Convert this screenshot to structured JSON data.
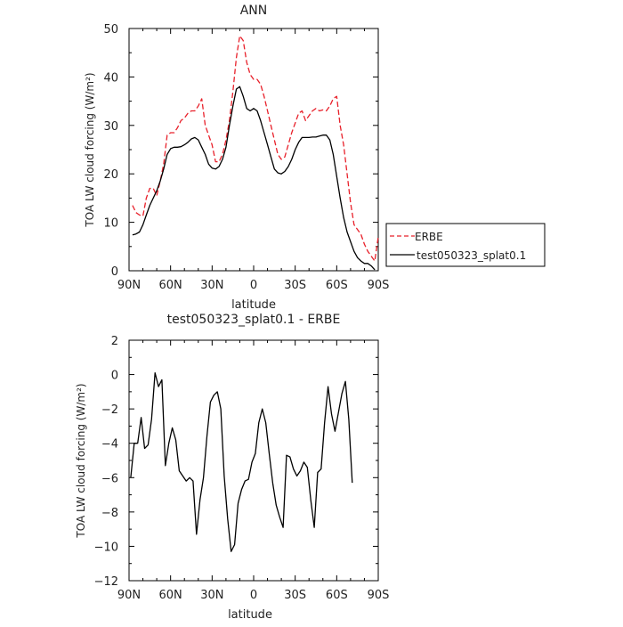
{
  "chart_data": [
    {
      "type": "line",
      "title": "ANN",
      "xlabel": "latitude",
      "ylabel": "TOA LW cloud forcing (W/m²)",
      "x_ticks": [
        90,
        60,
        30,
        0,
        -30,
        -60,
        -90
      ],
      "x_tick_labels": [
        "90N",
        "60N",
        "30N",
        "0",
        "30S",
        "60S",
        "90S"
      ],
      "xlim": [
        90,
        -90
      ],
      "ylim": [
        0,
        50
      ],
      "y_ticks": [
        0,
        10,
        20,
        30,
        40,
        50
      ],
      "y_tick_labels": [
        "0",
        "10",
        "20",
        "30",
        "40",
        "50"
      ],
      "legend_position": "outside-right",
      "series": [
        {
          "name": "ERBE",
          "color": "#e8202a",
          "dash": "dashed",
          "points": [
            [
              87.5,
              13.5
            ],
            [
              85,
              12
            ],
            [
              82.5,
              11.5
            ],
            [
              80,
              11.3
            ],
            [
              77.5,
              15
            ],
            [
              75,
              17
            ],
            [
              72.5,
              17
            ],
            [
              70,
              15.5
            ],
            [
              67.5,
              18.5
            ],
            [
              65,
              22
            ],
            [
              62.5,
              28
            ],
            [
              60,
              28.5
            ],
            [
              57.5,
              28.5
            ],
            [
              55,
              29.5
            ],
            [
              52.5,
              31
            ],
            [
              50,
              31.5
            ],
            [
              47.5,
              32.5
            ],
            [
              45,
              33
            ],
            [
              42.5,
              33
            ],
            [
              40,
              34
            ],
            [
              37.5,
              35.5
            ],
            [
              35,
              30
            ],
            [
              32.5,
              28
            ],
            [
              30,
              26
            ],
            [
              27.5,
              22.5
            ],
            [
              25,
              22.5
            ],
            [
              22.5,
              24
            ],
            [
              20,
              27
            ],
            [
              17.5,
              31
            ],
            [
              15,
              37
            ],
            [
              12.5,
              44
            ],
            [
              10,
              48.5
            ],
            [
              7.5,
              47.5
            ],
            [
              5,
              43
            ],
            [
              2.5,
              40.5
            ],
            [
              0,
              39.5
            ],
            [
              -2.5,
              39.5
            ],
            [
              -5,
              38.5
            ],
            [
              -7.5,
              36
            ],
            [
              -10,
              33
            ],
            [
              -12.5,
              30
            ],
            [
              -15,
              27
            ],
            [
              -17.5,
              24
            ],
            [
              -20,
              23
            ],
            [
              -22.5,
              23.5
            ],
            [
              -25,
              26
            ],
            [
              -27.5,
              28.5
            ],
            [
              -30,
              30.5
            ],
            [
              -32.5,
              32.5
            ],
            [
              -35,
              33
            ],
            [
              -37.5,
              31
            ],
            [
              -40,
              32
            ],
            [
              -42.5,
              33
            ],
            [
              -45,
              33.5
            ],
            [
              -47.5,
              33
            ],
            [
              -50,
              33.2
            ],
            [
              -52.5,
              33
            ],
            [
              -55,
              34
            ],
            [
              -57.5,
              35.5
            ],
            [
              -60,
              36
            ],
            [
              -62.5,
              30
            ],
            [
              -65,
              26
            ],
            [
              -67.5,
              20
            ],
            [
              -70,
              14
            ],
            [
              -72.5,
              9.5
            ],
            [
              -75,
              8.5
            ],
            [
              -77.5,
              7.5
            ],
            [
              -80,
              5.5
            ],
            [
              -82.5,
              4
            ],
            [
              -85,
              3
            ],
            [
              -87.5,
              2
            ],
            [
              -90,
              7
            ]
          ]
        },
        {
          "name": "test050323_splat0.1",
          "color": "#000000",
          "dash": "solid",
          "points": [
            [
              87.5,
              7.4
            ],
            [
              85,
              7.6
            ],
            [
              82.5,
              8
            ],
            [
              80,
              9.5
            ],
            [
              77.5,
              11.5
            ],
            [
              75,
              13.5
            ],
            [
              72.5,
              15
            ],
            [
              70,
              16.5
            ],
            [
              67.5,
              18.5
            ],
            [
              65,
              21
            ],
            [
              62.5,
              24
            ],
            [
              60,
              25.2
            ],
            [
              57.5,
              25.5
            ],
            [
              55,
              25.5
            ],
            [
              52.5,
              25.6
            ],
            [
              50,
              26
            ],
            [
              47.5,
              26.5
            ],
            [
              45,
              27.2
            ],
            [
              42.5,
              27.5
            ],
            [
              40,
              27
            ],
            [
              37.5,
              25.5
            ],
            [
              35,
              24
            ],
            [
              32.5,
              22
            ],
            [
              30,
              21.2
            ],
            [
              27.5,
              21
            ],
            [
              25,
              21.5
            ],
            [
              22.5,
              23
            ],
            [
              20,
              25.5
            ],
            [
              17.5,
              30
            ],
            [
              15,
              34
            ],
            [
              12.5,
              37.5
            ],
            [
              10,
              38
            ],
            [
              7.5,
              36
            ],
            [
              5,
              33.5
            ],
            [
              2.5,
              33
            ],
            [
              0,
              33.5
            ],
            [
              -2.5,
              33
            ],
            [
              -5,
              31
            ],
            [
              -7.5,
              28.5
            ],
            [
              -10,
              26
            ],
            [
              -12.5,
              23.5
            ],
            [
              -15,
              21
            ],
            [
              -17.5,
              20.2
            ],
            [
              -20,
              20
            ],
            [
              -22.5,
              20.5
            ],
            [
              -25,
              21.5
            ],
            [
              -27.5,
              23
            ],
            [
              -30,
              25
            ],
            [
              -32.5,
              26.5
            ],
            [
              -35,
              27.5
            ],
            [
              -37.5,
              27.5
            ],
            [
              -40,
              27.5
            ],
            [
              -42.5,
              27.6
            ],
            [
              -45,
              27.6
            ],
            [
              -47.5,
              27.8
            ],
            [
              -50,
              28
            ],
            [
              -52.5,
              28
            ],
            [
              -55,
              27
            ],
            [
              -57.5,
              24
            ],
            [
              -60,
              19.5
            ],
            [
              -62.5,
              15
            ],
            [
              -65,
              11
            ],
            [
              -67.5,
              8
            ],
            [
              -70,
              6
            ],
            [
              -72.5,
              4
            ],
            [
              -75,
              2.7
            ],
            [
              -77.5,
              2
            ],
            [
              -80,
              1.5
            ],
            [
              -82.5,
              1.5
            ],
            [
              -85,
              1
            ],
            [
              -87.5,
              0.2
            ]
          ]
        }
      ]
    },
    {
      "type": "line",
      "title": "test050323_splat0.1 - ERBE",
      "xlabel": "latitude",
      "ylabel": "TOA LW cloud forcing (W/m²)",
      "x_ticks": [
        90,
        60,
        30,
        0,
        -30,
        -60,
        -90
      ],
      "x_tick_labels": [
        "90N",
        "60N",
        "30N",
        "0",
        "30S",
        "60S",
        "90S"
      ],
      "xlim": [
        90,
        -90
      ],
      "ylim": [
        -12,
        2
      ],
      "y_ticks": [
        -12,
        -10,
        -8,
        -6,
        -4,
        -2,
        0,
        2
      ],
      "y_tick_labels": [
        "−12",
        "−10",
        "−8",
        "−6",
        "−4",
        "−2",
        "0",
        "2"
      ],
      "series": [
        {
          "color": "#000000",
          "dash": "solid",
          "points": [
            [
              88.75,
              -6
            ],
            [
              86.25,
              -4
            ],
            [
              83.75,
              -4
            ],
            [
              81.25,
              -2.5
            ],
            [
              78.75,
              -4.3
            ],
            [
              76.25,
              -4.1
            ],
            [
              73.75,
              -2.6
            ],
            [
              71.25,
              0.1
            ],
            [
              68.75,
              -0.7
            ],
            [
              66.25,
              -0.3
            ],
            [
              63.75,
              -5.3
            ],
            [
              61.25,
              -4
            ],
            [
              58.75,
              -3.1
            ],
            [
              56.25,
              -3.8
            ],
            [
              53.75,
              -5.6
            ],
            [
              51.25,
              -5.9
            ],
            [
              48.75,
              -6.2
            ],
            [
              46.25,
              -6
            ],
            [
              43.75,
              -6.2
            ],
            [
              41.25,
              -9.3
            ],
            [
              38.75,
              -7.3
            ],
            [
              36.25,
              -6
            ],
            [
              33.75,
              -3.6
            ],
            [
              31.25,
              -1.6
            ],
            [
              28.75,
              -1.2
            ],
            [
              26.25,
              -1
            ],
            [
              23.75,
              -2
            ],
            [
              21.25,
              -5.9
            ],
            [
              18.75,
              -8.4
            ],
            [
              16.25,
              -10.3
            ],
            [
              13.75,
              -9.9
            ],
            [
              11.25,
              -7.5
            ],
            [
              8.75,
              -6.7
            ],
            [
              6.25,
              -6.2
            ],
            [
              3.75,
              -6.1
            ],
            [
              1.25,
              -5.1
            ],
            [
              -1.25,
              -4.6
            ],
            [
              -3.75,
              -2.8
            ],
            [
              -6.25,
              -2
            ],
            [
              -8.75,
              -2.8
            ],
            [
              -11.25,
              -4.6
            ],
            [
              -13.75,
              -6.3
            ],
            [
              -16.25,
              -7.6
            ],
            [
              -18.75,
              -8.3
            ],
            [
              -21.25,
              -8.9
            ],
            [
              -23.75,
              -4.7
            ],
            [
              -26.25,
              -4.8
            ],
            [
              -28.75,
              -5.5
            ],
            [
              -31.25,
              -5.9
            ],
            [
              -33.75,
              -5.6
            ],
            [
              -36.25,
              -5.1
            ],
            [
              -38.75,
              -5.4
            ],
            [
              -41.25,
              -7.3
            ],
            [
              -43.75,
              -8.9
            ],
            [
              -46.25,
              -5.7
            ],
            [
              -48.75,
              -5.5
            ],
            [
              -51.25,
              -2.8
            ],
            [
              -53.75,
              -0.7
            ],
            [
              -56.25,
              -2.3
            ],
            [
              -58.75,
              -3.3
            ],
            [
              -61.25,
              -2.2
            ],
            [
              -63.75,
              -1.1
            ],
            [
              -66.25,
              -0.4
            ],
            [
              -68.75,
              -2.6
            ],
            [
              -71.25,
              -6.3
            ]
          ]
        }
      ]
    }
  ]
}
